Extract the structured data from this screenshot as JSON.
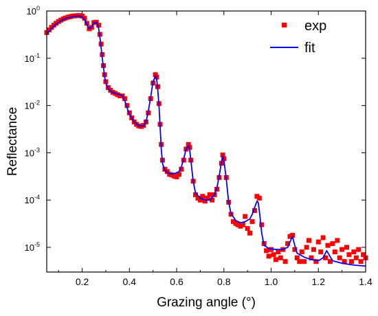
{
  "chart_data": {
    "type": "scatter",
    "xlabel": "Grazing angle (°)",
    "ylabel": "Reflectance",
    "xlim": [
      0.05,
      1.4
    ],
    "ylim": [
      3e-06,
      1.0
    ],
    "y_scale": "log",
    "x_ticks": [
      "0.2",
      "0.4",
      "0.6",
      "0.8",
      "1.0",
      "1.2",
      "1.4"
    ],
    "x_tick_values": [
      0.2,
      0.4,
      0.6,
      0.8,
      1.0,
      1.2,
      1.4
    ],
    "y_ticks": [
      {
        "mantissa": "10",
        "exp": "0",
        "value": 1
      },
      {
        "mantissa": "10",
        "exp": "-1",
        "value": 0.1
      },
      {
        "mantissa": "10",
        "exp": "-2",
        "value": 0.01
      },
      {
        "mantissa": "10",
        "exp": "-3",
        "value": 0.001
      },
      {
        "mantissa": "10",
        "exp": "-4",
        "value": 0.0001
      },
      {
        "mantissa": "10",
        "exp": "-5",
        "value": 1e-05
      }
    ],
    "grid": false,
    "legend_position": "top-right",
    "series": [
      {
        "name": "exp",
        "style": "markers",
        "marker": "square",
        "color": "#ff0000",
        "points": [
          [
            0.05,
            0.35
          ],
          [
            0.06,
            0.4
          ],
          [
            0.07,
            0.45
          ],
          [
            0.08,
            0.5
          ],
          [
            0.09,
            0.55
          ],
          [
            0.1,
            0.6
          ],
          [
            0.11,
            0.64
          ],
          [
            0.12,
            0.68
          ],
          [
            0.13,
            0.71
          ],
          [
            0.14,
            0.74
          ],
          [
            0.15,
            0.76
          ],
          [
            0.16,
            0.78
          ],
          [
            0.17,
            0.79
          ],
          [
            0.18,
            0.8
          ],
          [
            0.19,
            0.8
          ],
          [
            0.2,
            0.78
          ],
          [
            0.21,
            0.7
          ],
          [
            0.22,
            0.55
          ],
          [
            0.23,
            0.42
          ],
          [
            0.24,
            0.45
          ],
          [
            0.25,
            0.57
          ],
          [
            0.26,
            0.58
          ],
          [
            0.27,
            0.5
          ],
          [
            0.275,
            0.32
          ],
          [
            0.28,
            0.2
          ],
          [
            0.285,
            0.12
          ],
          [
            0.29,
            0.07
          ],
          [
            0.295,
            0.045
          ],
          [
            0.3,
            0.032
          ],
          [
            0.31,
            0.024
          ],
          [
            0.32,
            0.021
          ],
          [
            0.33,
            0.019
          ],
          [
            0.34,
            0.018
          ],
          [
            0.35,
            0.017
          ],
          [
            0.36,
            0.016
          ],
          [
            0.37,
            0.016
          ],
          [
            0.38,
            0.014
          ],
          [
            0.39,
            0.01
          ],
          [
            0.4,
            0.007
          ],
          [
            0.41,
            0.0055
          ],
          [
            0.42,
            0.0045
          ],
          [
            0.43,
            0.004
          ],
          [
            0.44,
            0.0037
          ],
          [
            0.45,
            0.0036
          ],
          [
            0.46,
            0.0038
          ],
          [
            0.47,
            0.0045
          ],
          [
            0.48,
            0.007
          ],
          [
            0.49,
            0.014
          ],
          [
            0.5,
            0.03
          ],
          [
            0.51,
            0.045
          ],
          [
            0.515,
            0.04
          ],
          [
            0.52,
            0.025
          ],
          [
            0.525,
            0.011
          ],
          [
            0.53,
            0.004
          ],
          [
            0.535,
            0.0015
          ],
          [
            0.54,
            0.0007
          ],
          [
            0.55,
            0.00045
          ],
          [
            0.56,
            0.0004
          ],
          [
            0.57,
            0.00035
          ],
          [
            0.58,
            0.00034
          ],
          [
            0.59,
            0.00032
          ],
          [
            0.6,
            0.00031
          ],
          [
            0.61,
            0.00035
          ],
          [
            0.62,
            0.00045
          ],
          [
            0.63,
            0.0007
          ],
          [
            0.64,
            0.0012
          ],
          [
            0.65,
            0.0015
          ],
          [
            0.655,
            0.0013
          ],
          [
            0.66,
            0.0007
          ],
          [
            0.67,
            0.00025
          ],
          [
            0.68,
            0.00013
          ],
          [
            0.69,
            0.00011
          ],
          [
            0.7,
            0.0001
          ],
          [
            0.71,
            0.00012
          ],
          [
            0.72,
            9.5e-05
          ],
          [
            0.73,
            0.00011
          ],
          [
            0.74,
            0.00013
          ],
          [
            0.75,
            0.0001
          ],
          [
            0.76,
            0.00013
          ],
          [
            0.77,
            0.00017
          ],
          [
            0.78,
            0.0003
          ],
          [
            0.79,
            0.0006
          ],
          [
            0.795,
            0.0009
          ],
          [
            0.8,
            0.00075
          ],
          [
            0.81,
            0.0003
          ],
          [
            0.82,
            9e-05
          ],
          [
            0.83,
            5e-05
          ],
          [
            0.84,
            3.5e-05
          ],
          [
            0.85,
            3.2e-05
          ],
          [
            0.86,
            3e-05
          ],
          [
            0.87,
            2.8e-05
          ],
          [
            0.88,
            3e-05
          ],
          [
            0.89,
            4.5e-05
          ],
          [
            0.9,
            2.5e-05
          ],
          [
            0.91,
            2e-05
          ],
          [
            0.92,
            3.5e-05
          ],
          [
            0.93,
            6e-05
          ],
          [
            0.94,
            0.00012
          ],
          [
            0.95,
            0.00011
          ],
          [
            0.96,
            3e-05
          ],
          [
            0.97,
            1.2e-05
          ],
          [
            0.98,
            8.5e-06
          ],
          [
            0.99,
            6.5e-06
          ],
          [
            1.0,
            9e-06
          ],
          [
            1.01,
            7e-06
          ],
          [
            1.02,
            5.5e-06
          ],
          [
            1.03,
            8e-06
          ],
          [
            1.04,
            6e-06
          ],
          [
            1.05,
            9e-06
          ],
          [
            1.06,
            5e-06
          ],
          [
            1.07,
            1.2e-05
          ],
          [
            1.08,
            1.7e-05
          ],
          [
            1.09,
            1.8e-05
          ],
          [
            1.1,
            9e-06
          ],
          [
            1.11,
            6e-06
          ],
          [
            1.12,
            5e-06
          ],
          [
            1.13,
            8e-06
          ],
          [
            1.14,
            5e-06
          ],
          [
            1.15,
            1e-05
          ],
          [
            1.16,
            1.4e-05
          ],
          [
            1.17,
            6e-06
          ],
          [
            1.18,
            9e-06
          ],
          [
            1.19,
            5e-06
          ],
          [
            1.2,
            1.3e-05
          ],
          [
            1.21,
            8e-06
          ],
          [
            1.22,
            1.6e-05
          ],
          [
            1.23,
            6e-06
          ],
          [
            1.24,
            1.1e-05
          ],
          [
            1.25,
            5e-06
          ],
          [
            1.26,
            1.2e-05
          ],
          [
            1.27,
            8e-06
          ],
          [
            1.28,
            1.4e-05
          ],
          [
            1.29,
            6e-06
          ],
          [
            1.3,
            9e-06
          ],
          [
            1.31,
            5e-06
          ],
          [
            1.32,
            1e-05
          ],
          [
            1.33,
            7e-06
          ],
          [
            1.34,
            5e-06
          ],
          [
            1.35,
            8e-06
          ],
          [
            1.36,
            6e-06
          ],
          [
            1.37,
            9e-06
          ],
          [
            1.38,
            5e-06
          ],
          [
            1.39,
            7e-06
          ],
          [
            1.4,
            6e-06
          ]
        ]
      },
      {
        "name": "fit",
        "style": "line",
        "color": "#0000ff",
        "points": [
          [
            0.05,
            0.33
          ],
          [
            0.08,
            0.48
          ],
          [
            0.11,
            0.63
          ],
          [
            0.14,
            0.72
          ],
          [
            0.17,
            0.77
          ],
          [
            0.19,
            0.78
          ],
          [
            0.2,
            0.74
          ],
          [
            0.21,
            0.66
          ],
          [
            0.22,
            0.52
          ],
          [
            0.23,
            0.42
          ],
          [
            0.24,
            0.46
          ],
          [
            0.25,
            0.56
          ],
          [
            0.26,
            0.57
          ],
          [
            0.265,
            0.52
          ],
          [
            0.27,
            0.42
          ],
          [
            0.275,
            0.28
          ],
          [
            0.28,
            0.17
          ],
          [
            0.285,
            0.1
          ],
          [
            0.29,
            0.065
          ],
          [
            0.295,
            0.042
          ],
          [
            0.3,
            0.03
          ],
          [
            0.31,
            0.023
          ],
          [
            0.32,
            0.02
          ],
          [
            0.34,
            0.018
          ],
          [
            0.36,
            0.017
          ],
          [
            0.37,
            0.016
          ],
          [
            0.38,
            0.013
          ],
          [
            0.39,
            0.009
          ],
          [
            0.4,
            0.0065
          ],
          [
            0.42,
            0.0045
          ],
          [
            0.44,
            0.0037
          ],
          [
            0.46,
            0.0037
          ],
          [
            0.47,
            0.0045
          ],
          [
            0.48,
            0.0075
          ],
          [
            0.49,
            0.015
          ],
          [
            0.5,
            0.032
          ],
          [
            0.51,
            0.042
          ],
          [
            0.515,
            0.038
          ],
          [
            0.52,
            0.022
          ],
          [
            0.525,
            0.01
          ],
          [
            0.53,
            0.0035
          ],
          [
            0.535,
            0.0012
          ],
          [
            0.54,
            0.0006
          ],
          [
            0.55,
            0.00042
          ],
          [
            0.57,
            0.00036
          ],
          [
            0.59,
            0.00036
          ],
          [
            0.61,
            0.0004
          ],
          [
            0.62,
            0.0005
          ],
          [
            0.63,
            0.00075
          ],
          [
            0.64,
            0.0012
          ],
          [
            0.65,
            0.0014
          ],
          [
            0.655,
            0.0012
          ],
          [
            0.66,
            0.0007
          ],
          [
            0.67,
            0.00025
          ],
          [
            0.68,
            0.00014
          ],
          [
            0.7,
            0.00011
          ],
          [
            0.72,
            0.0001
          ],
          [
            0.74,
            0.0001
          ],
          [
            0.76,
            0.00013
          ],
          [
            0.77,
            0.00018
          ],
          [
            0.78,
            0.00032
          ],
          [
            0.79,
            0.00065
          ],
          [
            0.795,
            0.00085
          ],
          [
            0.8,
            0.0007
          ],
          [
            0.81,
            0.00028
          ],
          [
            0.82,
            9e-05
          ],
          [
            0.83,
            5.2e-05
          ],
          [
            0.85,
            3.7e-05
          ],
          [
            0.87,
            3.3e-05
          ],
          [
            0.89,
            3.5e-05
          ],
          [
            0.91,
            4e-05
          ],
          [
            0.92,
            5e-05
          ],
          [
            0.93,
            7e-05
          ],
          [
            0.94,
            9.5e-05
          ],
          [
            0.945,
            9e-05
          ],
          [
            0.95,
            6e-05
          ],
          [
            0.96,
            2e-05
          ],
          [
            0.97,
            1.1e-05
          ],
          [
            0.99,
            9.5e-06
          ],
          [
            1.02,
            9e-06
          ],
          [
            1.05,
            9e-06
          ],
          [
            1.07,
            1e-05
          ],
          [
            1.08,
            1.3e-05
          ],
          [
            1.09,
            1.7e-05
          ],
          [
            1.1,
            1.1e-05
          ],
          [
            1.11,
            7.5e-06
          ],
          [
            1.14,
            6.2e-06
          ],
          [
            1.17,
            5.5e-06
          ],
          [
            1.2,
            5.2e-06
          ],
          [
            1.22,
            6e-06
          ],
          [
            1.235,
            8.5e-06
          ],
          [
            1.245,
            7e-06
          ],
          [
            1.26,
            5.2e-06
          ],
          [
            1.3,
            4.6e-06
          ],
          [
            1.35,
            4.2e-06
          ],
          [
            1.4,
            4e-06
          ]
        ]
      }
    ]
  }
}
